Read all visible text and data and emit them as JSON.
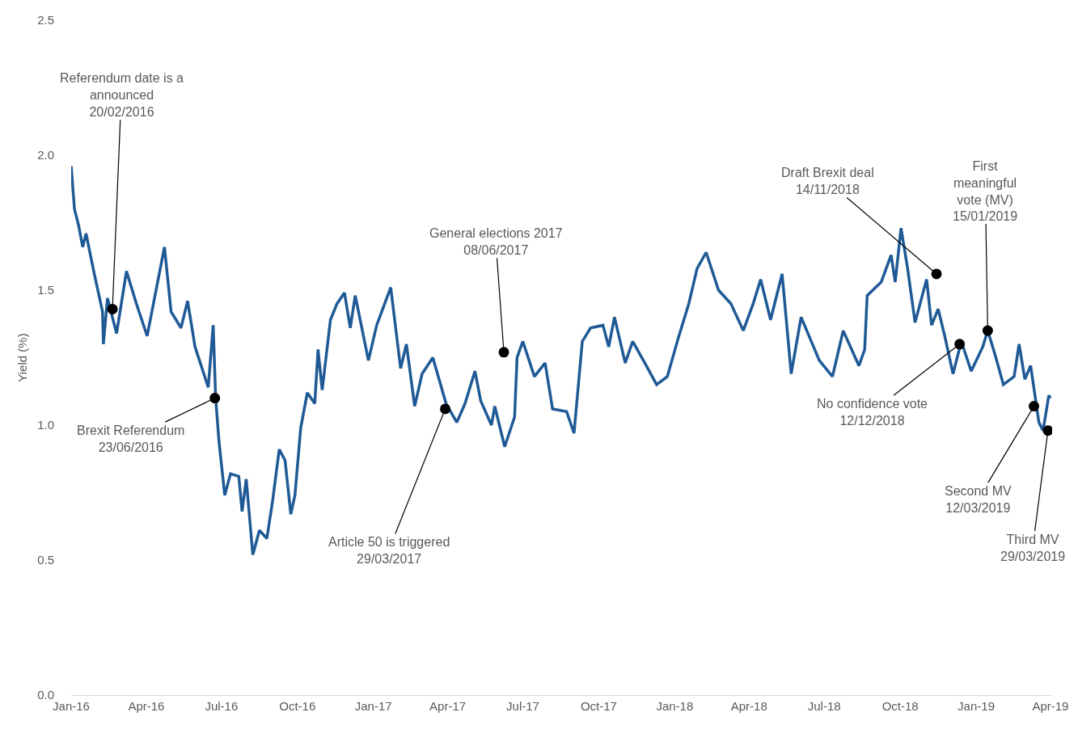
{
  "chart_data": {
    "type": "line",
    "ylabel": "Yield (%)",
    "x": [
      "2016-01-01",
      "2016-01-05",
      "2016-01-10",
      "2016-01-15",
      "2016-01-19",
      "2016-01-25",
      "2016-01-29",
      "2016-02-08",
      "2016-02-09",
      "2016-02-14",
      "2016-02-25",
      "2016-03-08",
      "2016-03-20",
      "2016-04-02",
      "2016-04-23",
      "2016-05-01",
      "2016-05-13",
      "2016-05-21",
      "2016-05-30",
      "2016-06-15",
      "2016-06-21",
      "2016-06-24",
      "2016-06-28",
      "2016-07-05",
      "2016-07-12",
      "2016-07-22",
      "2016-07-26",
      "2016-07-31",
      "2016-08-08",
      "2016-08-16",
      "2016-08-25",
      "2016-09-01",
      "2016-09-09",
      "2016-09-16",
      "2016-09-23",
      "2016-09-28",
      "2016-10-05",
      "2016-10-13",
      "2016-10-22",
      "2016-10-26",
      "2016-10-31",
      "2016-11-10",
      "2016-11-18",
      "2016-11-27",
      "2016-12-04",
      "2016-12-10",
      "2016-12-26",
      "2017-01-05",
      "2017-01-22",
      "2017-02-03",
      "2017-02-10",
      "2017-02-20",
      "2017-03-01",
      "2017-03-14",
      "2017-03-30",
      "2017-04-12",
      "2017-04-22",
      "2017-05-04",
      "2017-05-11",
      "2017-05-24",
      "2017-05-28",
      "2017-06-09",
      "2017-06-21",
      "2017-06-24",
      "2017-07-01",
      "2017-07-15",
      "2017-07-28",
      "2017-08-06",
      "2017-08-23",
      "2017-09-01",
      "2017-09-11",
      "2017-09-21",
      "2017-10-06",
      "2017-10-13",
      "2017-10-20",
      "2017-11-02",
      "2017-11-11",
      "2017-11-24",
      "2017-12-10",
      "2017-12-23",
      "2018-01-05",
      "2018-01-18",
      "2018-01-28",
      "2018-02-08",
      "2018-02-23",
      "2018-03-10",
      "2018-03-25",
      "2018-04-06",
      "2018-04-15",
      "2018-04-27",
      "2018-05-11",
      "2018-05-22",
      "2018-06-03",
      "2018-06-25",
      "2018-07-11",
      "2018-07-24",
      "2018-08-12",
      "2018-08-19",
      "2018-08-22",
      "2018-09-08",
      "2018-09-20",
      "2018-09-25",
      "2018-10-02",
      "2018-10-10",
      "2018-10-19",
      "2018-11-02",
      "2018-11-08",
      "2018-11-16",
      "2018-11-24",
      "2018-12-04",
      "2018-12-14",
      "2018-12-26",
      "2019-01-09",
      "2019-01-15",
      "2019-01-24",
      "2019-02-03",
      "2019-02-16",
      "2019-02-22",
      "2019-03-01",
      "2019-03-08",
      "2019-03-18",
      "2019-03-23",
      "2019-03-30",
      "2019-04-01"
    ],
    "series": [
      {
        "color": "#1f5a96",
        "values": [
          1.96,
          1.8,
          1.74,
          1.66,
          1.71,
          1.62,
          1.56,
          1.42,
          1.3,
          1.47,
          1.34,
          1.57,
          1.45,
          1.33,
          1.66,
          1.42,
          1.36,
          1.46,
          1.29,
          1.14,
          1.37,
          1.1,
          0.94,
          0.74,
          0.82,
          0.81,
          0.68,
          0.8,
          0.52,
          0.61,
          0.58,
          0.72,
          0.91,
          0.87,
          0.67,
          0.74,
          0.99,
          1.12,
          1.08,
          1.28,
          1.13,
          1.39,
          1.45,
          1.49,
          1.36,
          1.48,
          1.24,
          1.37,
          1.51,
          1.21,
          1.3,
          1.07,
          1.19,
          1.25,
          1.08,
          1.01,
          1.08,
          1.2,
          1.09,
          1.0,
          1.07,
          0.92,
          1.03,
          1.25,
          1.31,
          1.18,
          1.23,
          1.06,
          1.05,
          0.97,
          1.31,
          1.36,
          1.37,
          1.29,
          1.4,
          1.23,
          1.31,
          1.24,
          1.15,
          1.18,
          1.32,
          1.45,
          1.58,
          1.64,
          1.5,
          1.45,
          1.35,
          1.45,
          1.54,
          1.39,
          1.56,
          1.19,
          1.4,
          1.24,
          1.18,
          1.35,
          1.22,
          1.28,
          1.48,
          1.53,
          1.63,
          1.53,
          1.73,
          1.58,
          1.38,
          1.54,
          1.37,
          1.43,
          1.33,
          1.19,
          1.31,
          1.2,
          1.29,
          1.35,
          1.26,
          1.15,
          1.18,
          1.3,
          1.17,
          1.22,
          1.01,
          0.98,
          1.11,
          1.1
        ]
      }
    ],
    "xlim": [
      "2016-01-01",
      "2019-04-03"
    ],
    "xticks": [
      {
        "value": "2016-01-01",
        "label": "Jan-16"
      },
      {
        "value": "2016-04-01",
        "label": "Apr-16"
      },
      {
        "value": "2016-07-01",
        "label": "Jul-16"
      },
      {
        "value": "2016-10-01",
        "label": "Oct-16"
      },
      {
        "value": "2017-01-01",
        "label": "Jan-17"
      },
      {
        "value": "2017-04-01",
        "label": "Apr-17"
      },
      {
        "value": "2017-07-01",
        "label": "Jul-17"
      },
      {
        "value": "2017-10-01",
        "label": "Oct-17"
      },
      {
        "value": "2018-01-01",
        "label": "Jan-18"
      },
      {
        "value": "2018-04-01",
        "label": "Apr-18"
      },
      {
        "value": "2018-07-01",
        "label": "Jul-18"
      },
      {
        "value": "2018-10-01",
        "label": "Oct-18"
      },
      {
        "value": "2019-01-01",
        "label": "Jan-19"
      },
      {
        "value": "2019-04-01",
        "label": "Apr-19"
      }
    ],
    "ylim": [
      0,
      2.5
    ],
    "yticks": [
      {
        "value": 0,
        "label": "0.0"
      },
      {
        "value": 0.5,
        "label": "0.5"
      },
      {
        "value": 1,
        "label": "1.0"
      },
      {
        "value": 1.5,
        "label": "1.5"
      },
      {
        "value": 2,
        "label": "2.0"
      },
      {
        "value": 2.5,
        "label": "2.5"
      }
    ],
    "grid": false,
    "marker": "none",
    "line_style": "solid",
    "annotations": [
      {
        "text": "Referendum date is a\nannounced\n20/02/2016",
        "x": "2016-02-20",
        "y": 1.43
      },
      {
        "text": "Brexit Referendum\n23/06/2016",
        "x": "2016-06-23",
        "y": 1.1
      },
      {
        "text": "Article 50 is triggered\n29/03/2017",
        "x": "2017-03-29",
        "y": 1.06
      },
      {
        "text": "General elections 2017\n08/06/2017",
        "x": "2017-06-08",
        "y": 1.27
      },
      {
        "text": "Draft Brexit deal\n14/11/2018",
        "x": "2018-11-14",
        "y": 1.56
      },
      {
        "text": "First\nmeaningful\nvote (MV)\n15/01/2019",
        "x": "2019-01-15",
        "y": 1.35
      },
      {
        "text": "No confidence vote\n12/12/2018",
        "x": "2018-12-12",
        "y": 1.3
      },
      {
        "text": "Second MV\n12/03/2019",
        "x": "2019-03-12",
        "y": 1.07
      },
      {
        "text": "Third MV\n29/03/2019",
        "x": "2019-03-29",
        "y": 0.98
      }
    ]
  }
}
